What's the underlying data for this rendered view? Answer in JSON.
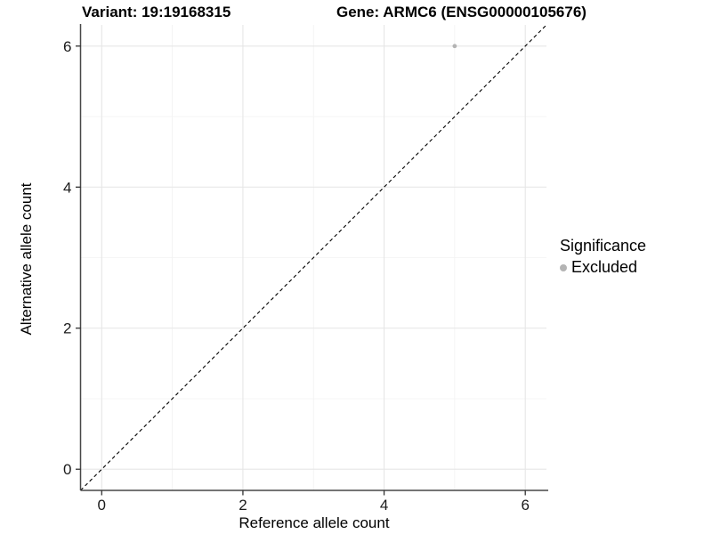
{
  "titles": {
    "variant": "Variant: 19:19168315",
    "gene": "Gene: ARMC6 (ENSG00000105676)"
  },
  "chart_data": {
    "type": "scatter",
    "xlabel": "Reference allele count",
    "ylabel": "Alternative allele count",
    "xlim": [
      -0.3,
      6.3
    ],
    "ylim": [
      -0.3,
      6.3
    ],
    "x_major_ticks": [
      0,
      2,
      4,
      6
    ],
    "y_major_ticks": [
      0,
      2,
      4,
      6
    ],
    "x_minor_ticks": [
      1,
      3,
      5
    ],
    "y_minor_ticks": [
      1,
      3,
      5
    ],
    "grid": true,
    "reference_line": {
      "type": "identity",
      "style": "dashed",
      "from": [
        -0.3,
        -0.3
      ],
      "to": [
        6.3,
        6.3
      ],
      "color": "#000000"
    },
    "series": [
      {
        "name": "Excluded",
        "color": "#b4b4b4",
        "points": [
          {
            "x": 5,
            "y": 6
          }
        ]
      }
    ],
    "legend": {
      "title": "Significance",
      "position": "right",
      "entries": [
        {
          "label": "Excluded",
          "color": "#b4b4b4"
        }
      ]
    }
  },
  "colors": {
    "background": "#ffffff",
    "grid_major": "#e6e6e6",
    "grid_minor": "#f2f2f2",
    "axis_line": "#474747",
    "tick_mark": "#333333",
    "tick_label": "#1a1a1a",
    "point": "#b4b4b4",
    "reference_line": "#000000"
  }
}
